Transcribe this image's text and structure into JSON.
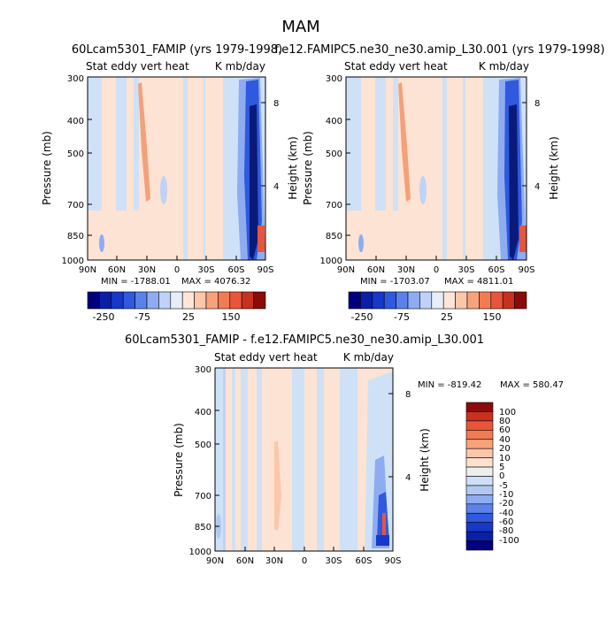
{
  "page_title": "MAM",
  "colors": {
    "fill_neg_shallow": "#cfe1f6",
    "fill_pos_shallow": "#fde3d3",
    "pos_streak": "#f4a07a",
    "neg_dark": "#1f3fbf",
    "neg_deep": "#0a1a7a",
    "frame": "#000000"
  },
  "chart_data": [
    {
      "type": "heatmap",
      "title": "60Lcam5301_FAMIP (yrs 1979-1998)",
      "subtitle_left": "Stat eddy vert heat",
      "subtitle_right": "K mb/day",
      "ylabel": "Pressure (mb)",
      "ylabel_right": "Height (km)",
      "x_ticks": [
        "90N",
        "60N",
        "30N",
        "0",
        "30S",
        "60S",
        "90S"
      ],
      "y_ticks": [
        "300",
        "400",
        "500",
        "700",
        "850",
        "1000"
      ],
      "y_right_ticks": [
        "8",
        "4"
      ],
      "ylim": [
        1000,
        300
      ],
      "y_scale": "log",
      "min_text": "MIN = -1788.01",
      "max_text": "MAX = 4076.32",
      "min": -1788.01,
      "max": 4076.32,
      "colorbar_labels": [
        "-250",
        "-75",
        "25",
        "150"
      ]
    },
    {
      "type": "heatmap",
      "title": "f.e12.FAMIPC5.ne30_ne30.amip_L30.001 (yrs 1979-1998)",
      "subtitle_left": "Stat eddy vert heat",
      "subtitle_right": "K mb/day",
      "ylabel": "Pressure (mb)",
      "ylabel_right": "Height (km)",
      "x_ticks": [
        "90N",
        "60N",
        "30N",
        "0",
        "30S",
        "60S",
        "90S"
      ],
      "y_ticks": [
        "300",
        "400",
        "500",
        "700",
        "850",
        "1000"
      ],
      "y_right_ticks": [
        "8",
        "4"
      ],
      "ylim": [
        1000,
        300
      ],
      "y_scale": "log",
      "min_text": "MIN = -1703.07",
      "max_text": "MAX = 4811.01",
      "min": -1703.07,
      "max": 4811.01,
      "colorbar_labels": [
        "-250",
        "-75",
        "25",
        "150"
      ]
    },
    {
      "type": "heatmap",
      "title": "60Lcam5301_FAMIP - f.e12.FAMIPC5.ne30_ne30.amip_L30.001",
      "subtitle_left": "Stat eddy vert heat",
      "subtitle_right": "K mb/day",
      "ylabel": "Pressure (mb)",
      "ylabel_right": "Height (km)",
      "x_ticks": [
        "90N",
        "60N",
        "30N",
        "0",
        "30S",
        "60S",
        "90S"
      ],
      "y_ticks": [
        "300",
        "400",
        "500",
        "700",
        "850",
        "1000"
      ],
      "y_right_ticks": [
        "8",
        "4"
      ],
      "ylim": [
        1000,
        300
      ],
      "y_scale": "log",
      "min_text": "MIN = -819.42",
      "max_text": "MAX = 580.47",
      "min": -819.42,
      "max": 580.47,
      "colorbar_labels": [
        "100",
        "80",
        "60",
        "40",
        "20",
        "10",
        "5",
        "0",
        "-5",
        "-10",
        "-20",
        "-40",
        "-60",
        "-80",
        "-100"
      ]
    }
  ],
  "colorbar_top": [
    "#00007f",
    "#0a1fa8",
    "#1738c8",
    "#2f59de",
    "#5b82ea",
    "#8dacf2",
    "#bfd2f8",
    "#e6eefc",
    "#fde6d8",
    "#fbc6aa",
    "#f8a27c",
    "#f27b52",
    "#e8553a",
    "#c8301f",
    "#8b0a0a"
  ],
  "colorbar_diff": [
    "#8b0a0a",
    "#c8301f",
    "#e8553a",
    "#f27b52",
    "#f8a27c",
    "#fbc6aa",
    "#fde1cf",
    "#eeeeee",
    "#cfdff6",
    "#b1c8f1",
    "#8dacf2",
    "#5b82ea",
    "#2f59de",
    "#1738c8",
    "#0a1fa8",
    "#00007f"
  ]
}
